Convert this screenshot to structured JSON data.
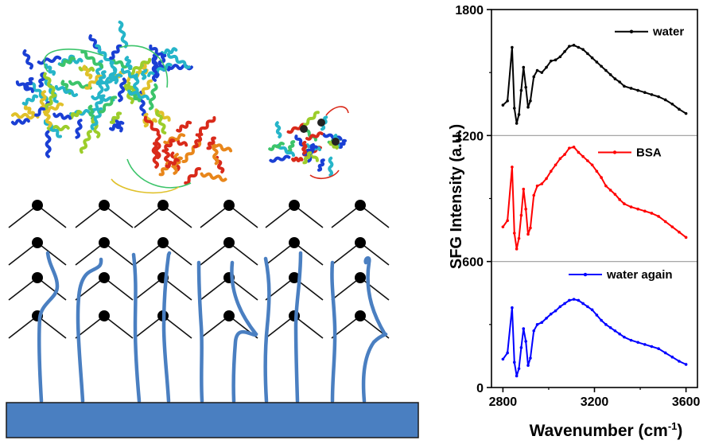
{
  "chart_data": {
    "type": "line",
    "xlabel": "Wavenumber (cm",
    "xlabel_sup": "-1",
    "xlabel_close": ")",
    "ylabel": "SFG Intensity (a.u.)",
    "xlim": [
      2750,
      3650
    ],
    "ylim": [
      0,
      1800
    ],
    "x_ticks": [
      "2800",
      "3200",
      "3600"
    ],
    "y_ticks": [
      "0",
      "600",
      "1200",
      "1800"
    ],
    "grid": false,
    "separators": [
      600,
      1200
    ],
    "legend_placement": "top-right of each panel",
    "x": [
      2800,
      2820,
      2840,
      2850,
      2860,
      2870,
      2880,
      2890,
      2900,
      2910,
      2920,
      2935,
      2950,
      2970,
      2990,
      3010,
      3030,
      3050,
      3070,
      3090,
      3110,
      3130,
      3150,
      3170,
      3190,
      3210,
      3230,
      3250,
      3270,
      3290,
      3310,
      3330,
      3360,
      3390,
      3420,
      3450,
      3480,
      3510,
      3540,
      3570,
      3600
    ],
    "series": [
      {
        "name": "water",
        "color": "#000000",
        "values": [
          1345,
          1365,
          1620,
          1330,
          1258,
          1300,
          1415,
          1525,
          1430,
          1335,
          1365,
          1480,
          1510,
          1500,
          1525,
          1555,
          1560,
          1575,
          1600,
          1625,
          1630,
          1620,
          1610,
          1590,
          1570,
          1550,
          1530,
          1510,
          1490,
          1470,
          1455,
          1435,
          1425,
          1415,
          1405,
          1395,
          1385,
          1370,
          1350,
          1325,
          1305
        ]
      },
      {
        "name": "BSA",
        "color": "#ff0000",
        "values": [
          765,
          795,
          1050,
          735,
          660,
          710,
          820,
          945,
          850,
          730,
          760,
          915,
          960,
          970,
          995,
          1030,
          1060,
          1090,
          1110,
          1140,
          1145,
          1120,
          1100,
          1080,
          1060,
          1030,
          1000,
          960,
          940,
          920,
          895,
          875,
          860,
          850,
          840,
          830,
          815,
          790,
          765,
          740,
          715
        ]
      },
      {
        "name": "water again",
        "color": "#0000ff",
        "values": [
          135,
          165,
          380,
          120,
          55,
          90,
          190,
          280,
          220,
          105,
          140,
          270,
          300,
          310,
          330,
          350,
          365,
          385,
          400,
          415,
          420,
          415,
          400,
          385,
          370,
          345,
          320,
          300,
          285,
          270,
          255,
          240,
          225,
          215,
          205,
          195,
          185,
          165,
          145,
          125,
          110
        ]
      }
    ]
  },
  "illustration": {
    "colors": {
      "chain": "#4a7fc1",
      "substrate": "#4a7fc1",
      "substrate_border": "#1a1a1a",
      "node": "#000000",
      "protein_palette": [
        "#1a3fd4",
        "#26b5c9",
        "#3cc46a",
        "#9ccd2a",
        "#e0c12a",
        "#e8861a",
        "#d92a1a",
        "#8a8a8a"
      ]
    }
  }
}
